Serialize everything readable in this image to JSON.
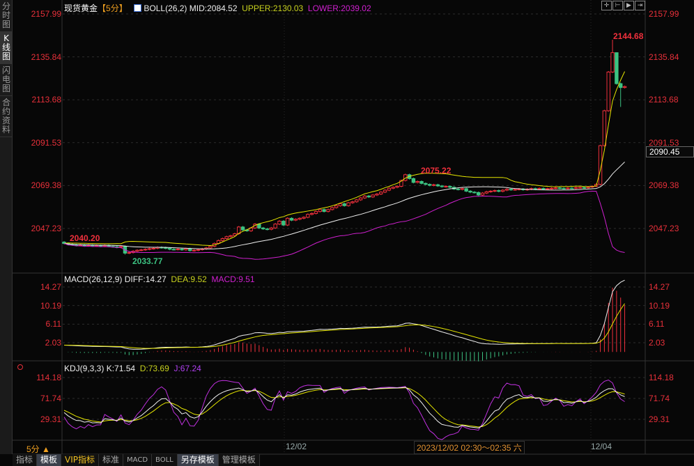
{
  "left_tabs": [
    {
      "label": "分时图"
    },
    {
      "label": "K线图",
      "active": true
    },
    {
      "label": "闪电图"
    },
    {
      "label": "合约资料"
    }
  ],
  "header": {
    "instrument": "现货黄金",
    "period": "【5分】",
    "boll": "BOLL(26,2)",
    "mid": "MID:2084.52",
    "upper": "UPPER:2130.03",
    "lower": "LOWER:2039.02"
  },
  "toolbar_icons": [
    "crosshair-icon",
    "zoom-in-icon",
    "zoom-out-icon",
    "move-right-icon"
  ],
  "main_axis": {
    "labels": [
      "2157.99",
      "2135.84",
      "2113.68",
      "2091.53",
      "2069.38",
      "2047.23"
    ],
    "current_price": "2090.45"
  },
  "annotations": {
    "high": "2144.68",
    "mid_high": "2075.22",
    "start": "2040.20",
    "low": "2033.77"
  },
  "macd": {
    "title": "MACD(26,12,9)",
    "diff": "DIFF:14.27",
    "dea": "DEA:9.52",
    "macd": "MACD:9.51",
    "labels": [
      "14.27",
      "10.19",
      "6.11",
      "2.03"
    ]
  },
  "kdj": {
    "title": "KDJ(9,3,3)",
    "k": "K:71.54",
    "d": "D:73.69",
    "j": "J:67.24",
    "labels": [
      "114.18",
      "71.74",
      "29.31"
    ]
  },
  "time_axis": {
    "period": "5分",
    "period_icon": "triangle-up-icon",
    "dates": [
      "12/02",
      "12/04"
    ],
    "cursor": "2023/12/02 02:30～02:35 六"
  },
  "bottom_tabs": [
    {
      "label": "指标"
    },
    {
      "label": "模板",
      "selected": true
    },
    {
      "label": "VIP指标",
      "vip": true
    },
    {
      "label": "标准"
    },
    {
      "label": "MACD"
    },
    {
      "label": "BOLL"
    },
    {
      "label": "另存模板",
      "selected": true
    },
    {
      "label": "管理模板"
    }
  ],
  "colors": {
    "up": "#f0303c",
    "down": "#3cc382",
    "upper": "#e6e600",
    "mid": "#f0f0f0",
    "lower": "#d020d0",
    "axis": "#e8303a"
  },
  "chart_data": {
    "type": "candlestick",
    "first_open": 2040.2,
    "closes": [
      2039.5,
      2039,
      2038.8,
      2038.5,
      2038.7,
      2038.3,
      2038.6,
      2038.2,
      2038.4,
      2038.1,
      2038.5,
      2038,
      2037.8,
      2037.5,
      2037.9,
      2034.5,
      2034.8,
      2035.5,
      2036,
      2036.2,
      2036.5,
      2036.8,
      2037,
      2037.5,
      2037.3,
      2037,
      2036.5,
      2036.4,
      2036.6,
      2036.2,
      2036.8,
      2035.8,
      2036,
      2036.3,
      2036.7,
      2037.2,
      2038,
      2039.5,
      2041,
      2042,
      2043,
      2043.5,
      2044.5,
      2048,
      2046.5,
      2046,
      2047.5,
      2049.5,
      2047.5,
      2047,
      2046.8,
      2047.5,
      2049.5,
      2051,
      2049,
      2052.5,
      2051.5,
      2052,
      2052.5,
      2053,
      2054.5,
      2055,
      2056,
      2057,
      2056,
      2057,
      2058,
      2059,
      2060,
      2059,
      2060.5,
      2061,
      2062,
      2063,
      2064,
      2063.5,
      2064.5,
      2065,
      2066,
      2067,
      2068,
      2068.5,
      2069,
      2072,
      2075,
      2073,
      2071,
      2071.5,
      2070.5,
      2070,
      2069.5,
      2069.8,
      2069.2,
      2068.8,
      2069,
      2068.5,
      2067.6,
      2067.4,
      2067.8,
      2066.5,
      2066,
      2065.8,
      2064.5,
      2065.5,
      2066.2,
      2066.5,
      2066.8,
      2066.4,
      2067,
      2067.5,
      2067.2,
      2067.4,
      2067.6,
      2067.2,
      2067.5,
      2067.8,
      2067.5,
      2067.9,
      2067.6,
      2067.8,
      2068,
      2068.2,
      2068,
      2067.9,
      2068.1,
      2068,
      2068.3,
      2068.4,
      2068.2,
      2068.6,
      2069,
      2070,
      2090,
      2108,
      2128,
      2138,
      2122,
      2120,
      2120.5
    ],
    "extremes": {
      "135": {
        "high": 2144.68
      },
      "136": {
        "high": 2130
      },
      "137": {
        "low": 2110
      },
      "15": {
        "low": 2033.77
      }
    },
    "ylim": [
      2030,
      2160
    ]
  }
}
